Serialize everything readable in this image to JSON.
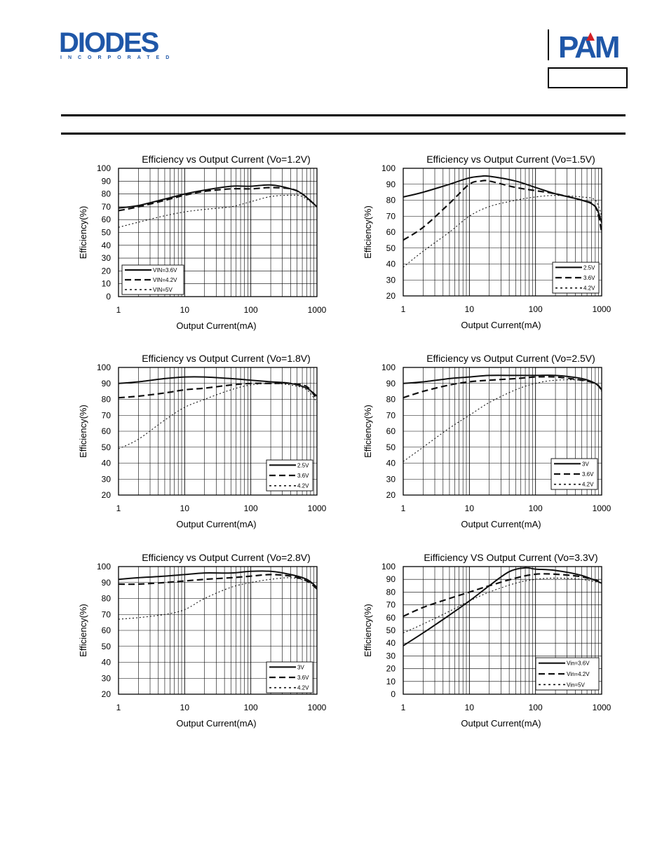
{
  "header": {
    "brand_left": "DIODES",
    "brand_left_sub": "INCORPORATED",
    "brand_right": "PAM"
  },
  "chart_data": [
    {
      "type": "line",
      "title": "Efficiency vs Output Current (Vo=1.2V)",
      "xlabel": "Output Current(mA)",
      "ylabel": "Efficiency(%)",
      "xscale": "log",
      "xlim": [
        1,
        1000
      ],
      "ylim": [
        0,
        100
      ],
      "xticks": [
        1,
        10,
        100,
        1000
      ],
      "yticks": [
        0,
        10,
        20,
        30,
        40,
        50,
        60,
        70,
        80,
        90,
        100
      ],
      "grid": true,
      "legend_position": "bottom-left",
      "series": [
        {
          "name": "VIN=3.6V",
          "style": "solid",
          "x": [
            1,
            2,
            5,
            10,
            20,
            50,
            100,
            200,
            400,
            600,
            1000
          ],
          "y": [
            69,
            71,
            76,
            80,
            83,
            86,
            86,
            87,
            84,
            80,
            70
          ]
        },
        {
          "name": "VIN=4.2V",
          "style": "dash",
          "x": [
            1,
            2,
            5,
            10,
            20,
            50,
            100,
            200,
            400,
            600,
            1000
          ],
          "y": [
            67,
            70,
            75,
            79,
            82,
            84,
            84,
            85,
            84,
            80,
            70
          ]
        },
        {
          "name": "VIN=5V",
          "style": "dot",
          "x": [
            1,
            2,
            5,
            10,
            20,
            50,
            100,
            200,
            400,
            600,
            1000
          ],
          "y": [
            54,
            58,
            63,
            66,
            68,
            70,
            74,
            78,
            79,
            78,
            70
          ]
        }
      ]
    },
    {
      "type": "line",
      "title": "Efficiency vs Output Current (Vo=1.5V)",
      "xlabel": "Output Current(mA)",
      "ylabel": "Efficiency(%)",
      "xscale": "log",
      "xlim": [
        1,
        1000
      ],
      "ylim": [
        20,
        100
      ],
      "xticks": [
        1,
        10,
        100,
        1000
      ],
      "yticks": [
        20,
        30,
        40,
        50,
        60,
        70,
        80,
        90,
        100
      ],
      "grid": true,
      "legend_position": "bottom-right",
      "series": [
        {
          "name": "2.5V",
          "style": "solid",
          "x": [
            1,
            2,
            5,
            10,
            15,
            20,
            50,
            100,
            200,
            500,
            800,
            1000
          ],
          "y": [
            82,
            85,
            90,
            94,
            95,
            95,
            92,
            88,
            84,
            80,
            76,
            66
          ]
        },
        {
          "name": "3.6V",
          "style": "dash",
          "x": [
            1,
            2,
            5,
            10,
            15,
            20,
            50,
            100,
            200,
            500,
            800,
            1000
          ],
          "y": [
            55,
            63,
            78,
            90,
            92,
            92,
            88,
            86,
            84,
            80,
            76,
            60
          ]
        },
        {
          "name": "4.2V",
          "style": "dot",
          "x": [
            1,
            2,
            5,
            10,
            20,
            50,
            100,
            200,
            500,
            800,
            1000
          ],
          "y": [
            38,
            48,
            60,
            70,
            76,
            80,
            82,
            83,
            82,
            80,
            70
          ]
        }
      ]
    },
    {
      "type": "line",
      "title": "Efficiency vs Output Current (Vo=1.8V)",
      "xlabel": "Output Current(mA)",
      "ylabel": "Efficiency(%)",
      "xscale": "log",
      "xlim": [
        1,
        1000
      ],
      "ylim": [
        20,
        100
      ],
      "xticks": [
        1,
        10,
        100,
        1000
      ],
      "yticks": [
        20,
        30,
        40,
        50,
        60,
        70,
        80,
        90,
        100
      ],
      "grid": true,
      "legend_position": "bottom-right",
      "series": [
        {
          "name": "2.5V",
          "style": "solid",
          "x": [
            1,
            2,
            5,
            10,
            20,
            50,
            100,
            200,
            400,
            700,
            1000
          ],
          "y": [
            90,
            91,
            93,
            94,
            94,
            93,
            92,
            91,
            90,
            87,
            82
          ]
        },
        {
          "name": "3.6V",
          "style": "dash",
          "x": [
            1,
            2,
            5,
            10,
            20,
            50,
            100,
            200,
            400,
            700,
            1000
          ],
          "y": [
            81,
            82,
            84,
            86,
            87,
            89,
            90,
            90,
            90,
            88,
            80
          ]
        },
        {
          "name": "4.2V",
          "style": "dot",
          "x": [
            1,
            2,
            5,
            10,
            20,
            50,
            100,
            200,
            400,
            700,
            1000
          ],
          "y": [
            49,
            55,
            67,
            75,
            80,
            86,
            89,
            90,
            89,
            86,
            78
          ]
        }
      ]
    },
    {
      "type": "line",
      "title": "Efficiency vs Output Current (Vo=2.5V)",
      "xlabel": "Output Current(mA)",
      "ylabel": "Efficiency(%)",
      "xscale": "log",
      "xlim": [
        1,
        1000
      ],
      "ylim": [
        20,
        100
      ],
      "xticks": [
        1,
        10,
        100,
        1000
      ],
      "yticks": [
        20,
        30,
        40,
        50,
        60,
        70,
        80,
        90,
        100
      ],
      "grid": true,
      "legend_position": "bottom-right",
      "series": [
        {
          "name": "3V",
          "style": "solid",
          "x": [
            1,
            2,
            5,
            10,
            20,
            50,
            100,
            200,
            500,
            800,
            1000
          ],
          "y": [
            90,
            91,
            93,
            94,
            95,
            95,
            95,
            95,
            93,
            90,
            86
          ]
        },
        {
          "name": "3.6V",
          "style": "dash",
          "x": [
            1,
            2,
            5,
            10,
            20,
            50,
            100,
            200,
            500,
            800,
            1000
          ],
          "y": [
            81,
            85,
            89,
            91,
            92,
            93,
            94,
            94,
            92,
            90,
            86
          ]
        },
        {
          "name": "4.2V",
          "style": "dot",
          "x": [
            1,
            2,
            5,
            10,
            20,
            50,
            100,
            200,
            500,
            800,
            1000
          ],
          "y": [
            41,
            50,
            62,
            70,
            78,
            86,
            90,
            92,
            92,
            90,
            85
          ]
        }
      ]
    },
    {
      "type": "line",
      "title": "Efficiency vs Output Current   (Vo=2.8V)",
      "xlabel": "Output Current(mA)",
      "ylabel": "Efficiency(%)",
      "xscale": "log",
      "xlim": [
        1,
        1000
      ],
      "ylim": [
        20,
        100
      ],
      "xticks": [
        1,
        10,
        100,
        1000
      ],
      "yticks": [
        20,
        30,
        40,
        50,
        60,
        70,
        80,
        90,
        100
      ],
      "grid": true,
      "legend_position": "bottom-right",
      "series": [
        {
          "name": "3V",
          "style": "solid",
          "x": [
            1,
            2,
            5,
            10,
            20,
            50,
            100,
            200,
            400,
            700,
            1000
          ],
          "y": [
            92,
            93,
            94,
            95,
            96,
            96,
            97,
            97,
            95,
            92,
            87
          ]
        },
        {
          "name": "3.6V",
          "style": "dash",
          "x": [
            1,
            2,
            5,
            10,
            20,
            50,
            100,
            200,
            400,
            700,
            1000
          ],
          "y": [
            89,
            89,
            90,
            91,
            92,
            93,
            94,
            95,
            94,
            91,
            86
          ]
        },
        {
          "name": "4.2V",
          "style": "dot",
          "x": [
            1,
            2,
            5,
            10,
            20,
            50,
            100,
            200,
            400,
            700,
            1000
          ],
          "y": [
            67,
            68,
            70,
            73,
            80,
            87,
            90,
            92,
            93,
            91,
            87
          ]
        }
      ]
    },
    {
      "type": "line",
      "title": "Eifficiency VS Output Current (Vo=3.3V)",
      "xlabel": "Output Current(mA)",
      "ylabel": "Efficiency(%)",
      "xscale": "log",
      "xlim": [
        1,
        1000
      ],
      "ylim": [
        0,
        100
      ],
      "xticks": [
        1,
        10,
        100,
        1000
      ],
      "yticks": [
        0,
        10,
        20,
        30,
        40,
        50,
        60,
        70,
        80,
        90,
        100
      ],
      "grid": true,
      "legend_position": "bottom-right",
      "series": [
        {
          "name": "Vin=3.6V",
          "style": "solid",
          "x": [
            1,
            2,
            5,
            10,
            20,
            40,
            70,
            100,
            200,
            500,
            1000
          ],
          "y": [
            38,
            48,
            62,
            73,
            85,
            96,
            99,
            98,
            97,
            93,
            87
          ]
        },
        {
          "name": "Vin=4.2V",
          "style": "dash",
          "x": [
            1,
            2,
            5,
            10,
            20,
            50,
            100,
            200,
            500,
            1000
          ],
          "y": [
            61,
            68,
            75,
            80,
            85,
            91,
            94,
            94,
            92,
            88
          ]
        },
        {
          "name": "Vin=5V",
          "style": "dot",
          "x": [
            1,
            2,
            5,
            10,
            20,
            50,
            100,
            200,
            500,
            1000
          ],
          "y": [
            48,
            55,
            65,
            73,
            80,
            87,
            90,
            91,
            90,
            87
          ]
        }
      ]
    }
  ]
}
